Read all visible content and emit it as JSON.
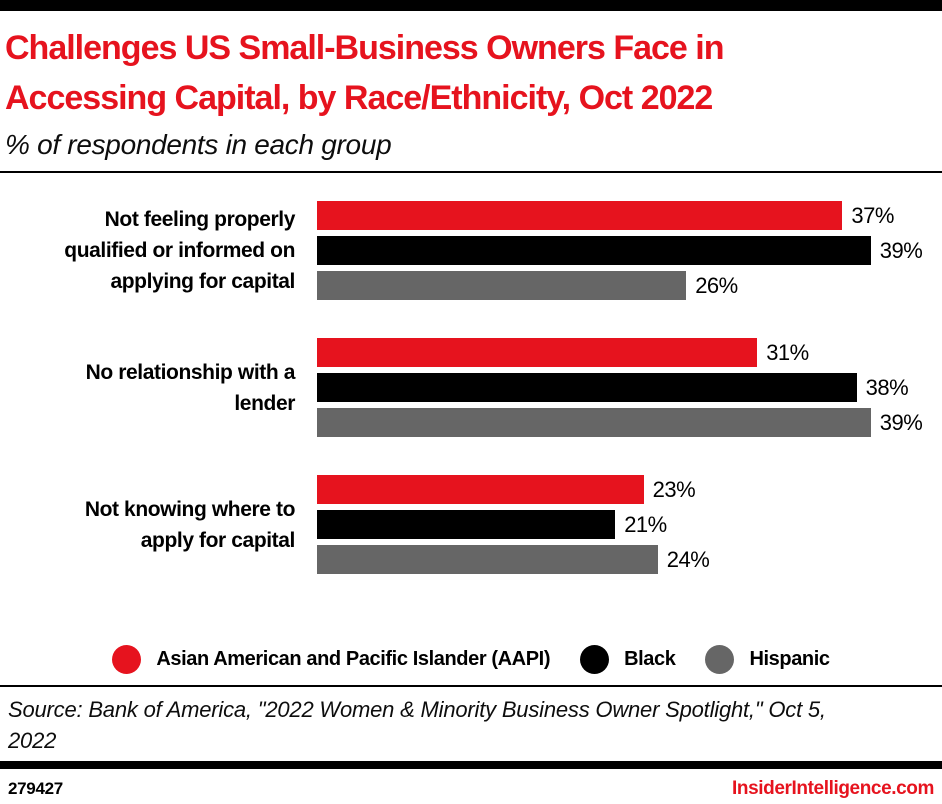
{
  "header": {
    "title_line1": "Challenges US Small-Business Owners Face in",
    "title_line2": "Accessing Capital, by Race/Ethnicity, Oct 2022",
    "subtitle": "% of respondents in each group"
  },
  "chart_data": {
    "type": "bar",
    "orientation": "horizontal",
    "title": "Challenges US Small-Business Owners Face in Accessing Capital, by Race/Ethnicity, Oct 2022",
    "subtitle": "% of respondents in each group",
    "categories": [
      "Not feeling properly qualified or informed on applying for capital",
      "No relationship with a lender",
      "Not knowing where to apply for capital"
    ],
    "category_display_lines": [
      [
        "Not feeling properly",
        "qualified or informed on",
        "applying for capital"
      ],
      [
        "No relationship with a",
        "lender"
      ],
      [
        "Not knowing where to",
        "apply for capital"
      ]
    ],
    "series": [
      {
        "name": "Asian American and Pacific Islander (AAPI)",
        "color": "#e6131e",
        "values": [
          37,
          31,
          23
        ]
      },
      {
        "name": "Black",
        "color": "#000000",
        "values": [
          39,
          38,
          21
        ]
      },
      {
        "name": "Hispanic",
        "color": "#666666",
        "values": [
          26,
          39,
          24
        ]
      }
    ],
    "value_suffix": "%",
    "value_labels_shown": true,
    "xlim": [
      0,
      44
    ],
    "grid": false,
    "axis_ticks_shown": false,
    "legend_position": "bottom"
  },
  "legend": {
    "items": [
      {
        "label": "Asian American and Pacific Islander (AAPI)",
        "color": "#e6131e"
      },
      {
        "label": "Black",
        "color": "#000000"
      },
      {
        "label": "Hispanic",
        "color": "#666666"
      }
    ]
  },
  "source": {
    "line1": "Source: Bank of America, \"2022 Women & Minority Business Owner Spotlight,\" Oct 5,",
    "line2": "2022"
  },
  "footer": {
    "chart_id": "279427",
    "brand": "InsiderIntelligence.com"
  },
  "colors": {
    "accent_red": "#e6131e",
    "bar_black": "#000000",
    "bar_gray": "#666666",
    "rule_color": "#000000"
  }
}
